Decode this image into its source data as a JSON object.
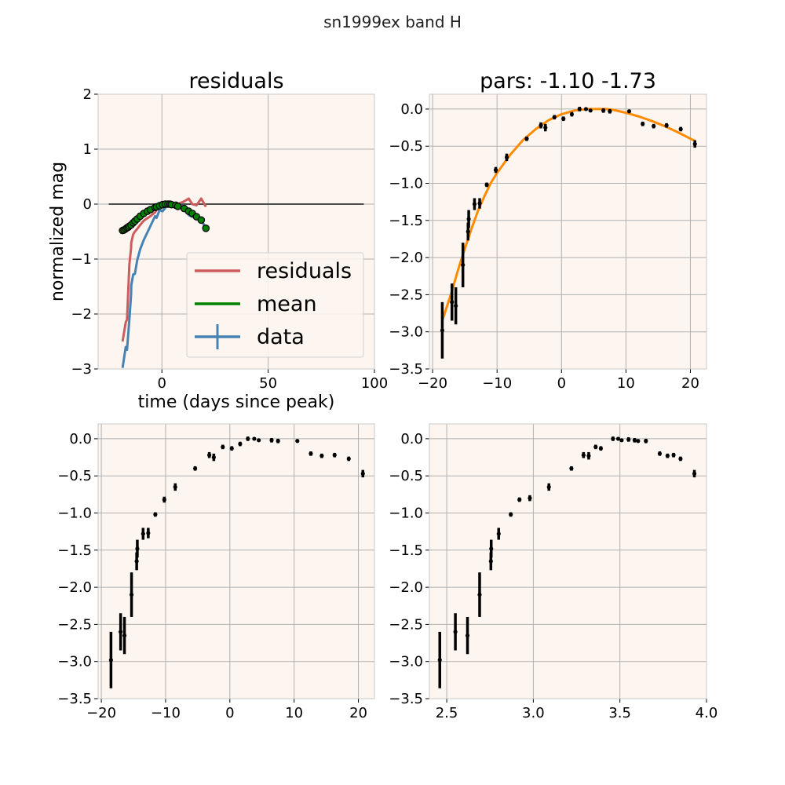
{
  "figure": {
    "title": "sn1999ex band H"
  },
  "legend": [
    {
      "label": "residuals",
      "color": "#cd5c5c"
    },
    {
      "label": "mean",
      "color": "#008000"
    },
    {
      "label": "data",
      "color": "#4682b4"
    }
  ],
  "colors": {
    "panel_bg": "#fdf6f0",
    "grid": "#b0b0b0",
    "fit": "#ff8c00",
    "zero_line": "#4d4d4d",
    "points": "#000000"
  },
  "chart_data": [
    {
      "id": "residuals",
      "type": "line",
      "title": "residuals",
      "xlabel": "time (days since peak)",
      "ylabel": "normalized mag",
      "xlim": [
        -30,
        100
      ],
      "ylim": [
        -3,
        2
      ],
      "xticks": [
        0,
        50,
        100
      ],
      "yticks": [
        -3,
        -2,
        -1,
        0,
        1,
        2
      ],
      "grid": true,
      "legend_position": "lower-right",
      "zero_line": {
        "x": [
          -25,
          95
        ],
        "y": 0
      },
      "series": [
        {
          "name": "residuals",
          "color": "#cd5c5c",
          "x": [
            -18.5,
            -17,
            -16.4,
            -15.3,
            -14.5,
            -14.4,
            -13.5,
            -12.7,
            -11.6,
            -10.2,
            -8.5,
            -5.4,
            -3.2,
            -2.5,
            -1.1,
            0.3,
            1.6,
            2.8,
            3.8,
            4.5,
            6.5,
            7.5,
            10.5,
            12.6,
            14.3,
            16.3,
            18.5,
            20.7
          ],
          "y": [
            -2.5,
            -2.15,
            -2.1,
            -1.1,
            -0.8,
            -0.7,
            -0.55,
            -0.5,
            -0.45,
            -0.38,
            -0.3,
            -0.22,
            -0.15,
            -0.1,
            -0.05,
            0.0,
            0.02,
            0.02,
            0.0,
            -0.02,
            0.02,
            0.0,
            0.05,
            0.1,
            0.0,
            -0.02,
            0.1,
            -0.05
          ]
        },
        {
          "name": "mean",
          "color": "#008000",
          "x": [
            -18.5,
            -17,
            -16.4,
            -15.3,
            -14.5,
            -14.4,
            -13.5,
            -12.7,
            -11.6,
            -10.2,
            -8.5,
            -5.4,
            -3.2,
            -2.5,
            -1.1,
            0.3,
            1.6,
            2.8,
            3.8,
            4.5,
            6.5,
            7.5,
            10.5,
            12.6,
            14.3,
            16.3,
            18.5,
            20.7
          ],
          "y": [
            -0.48,
            -0.45,
            -0.43,
            -0.4,
            -0.38,
            -0.37,
            -0.34,
            -0.31,
            -0.27,
            -0.22,
            -0.17,
            -0.1,
            -0.06,
            -0.05,
            -0.03,
            -0.01,
            0.0,
            0.0,
            0.0,
            -0.01,
            -0.02,
            -0.04,
            -0.08,
            -0.13,
            -0.17,
            -0.23,
            -0.29,
            -0.44
          ]
        },
        {
          "name": "data",
          "color": "#4682b4",
          "x": [
            -18.5,
            -17,
            -16.4,
            -15.3,
            -14.5,
            -14.4,
            -13.5,
            -12.7,
            -11.6,
            -10.2,
            -8.5,
            -5.4,
            -3.2,
            -2.5,
            -1.1,
            0.3,
            1.6,
            2.8,
            3.8,
            4.5,
            6.5,
            7.5,
            10.5,
            12.6,
            14.3,
            16.3,
            18.5,
            20.7
          ],
          "y": [
            -2.98,
            -2.6,
            -2.65,
            -2.1,
            -1.65,
            -1.48,
            -1.28,
            -1.27,
            -1.02,
            -0.82,
            -0.65,
            -0.4,
            -0.22,
            -0.25,
            -0.11,
            -0.13,
            -0.07,
            0.0,
            0.0,
            -0.02,
            -0.02,
            -0.03,
            -0.03,
            -0.2,
            -0.23,
            -0.22,
            -0.27,
            -0.47
          ]
        }
      ],
      "mean_points": {
        "x": [
          -18.5,
          -17.8,
          -17,
          -16.4,
          -15.8,
          -15.3,
          -14.5,
          -13.5,
          -12.7,
          -11.6,
          -10.2,
          -8.5,
          -6.8,
          -5.4,
          -3.2,
          -2.5,
          -1.1,
          0.3,
          1.6,
          2.8,
          3.8,
          4.5,
          6.5,
          7.5,
          10.5,
          12.6,
          14.3,
          16.3,
          18.5,
          20.7
        ],
        "y": [
          -0.48,
          -0.47,
          -0.45,
          -0.43,
          -0.42,
          -0.4,
          -0.38,
          -0.34,
          -0.31,
          -0.27,
          -0.22,
          -0.17,
          -0.13,
          -0.1,
          -0.06,
          -0.05,
          -0.03,
          -0.01,
          0.0,
          0.0,
          0.0,
          -0.01,
          -0.02,
          -0.04,
          -0.08,
          -0.13,
          -0.17,
          -0.23,
          -0.29,
          -0.44
        ]
      }
    },
    {
      "id": "pars",
      "type": "scatter",
      "title": "pars: -1.10 -1.73",
      "xlim": [
        -20.5,
        22.5
      ],
      "ylim": [
        -3.5,
        0.2
      ],
      "xticks": [
        -20,
        -10,
        0,
        10,
        20
      ],
      "yticks": [
        0.0,
        -0.5,
        -1.0,
        -1.5,
        -2.0,
        -2.5,
        -3.0,
        -3.5
      ],
      "grid": true,
      "x": [
        -18.5,
        -17,
        -16.4,
        -15.3,
        -14.5,
        -14.4,
        -13.5,
        -12.7,
        -11.6,
        -10.2,
        -8.5,
        -5.4,
        -3.2,
        -2.5,
        -1.1,
        0.3,
        1.6,
        2.8,
        3.8,
        4.5,
        6.5,
        7.5,
        10.5,
        12.6,
        14.3,
        16.3,
        18.5,
        20.7
      ],
      "y": [
        -2.98,
        -2.6,
        -2.65,
        -2.1,
        -1.65,
        -1.48,
        -1.28,
        -1.27,
        -1.02,
        -0.82,
        -0.65,
        -0.4,
        -0.22,
        -0.25,
        -0.11,
        -0.13,
        -0.07,
        0.0,
        0.0,
        -0.02,
        -0.02,
        -0.03,
        -0.03,
        -0.2,
        -0.23,
        -0.22,
        -0.27,
        -0.47
      ],
      "yerr": [
        0.38,
        0.25,
        0.25,
        0.3,
        0.12,
        0.12,
        0.08,
        0.07,
        0.03,
        0.04,
        0.05,
        0.03,
        0.04,
        0.05,
        0.03,
        0.03,
        0.03,
        0.03,
        0.02,
        0.02,
        0.03,
        0.03,
        0.02,
        0.03,
        0.03,
        0.03,
        0.03,
        0.05
      ],
      "fit_curve": {
        "x": [
          -18.5,
          -17,
          -16,
          -15,
          -14,
          -13,
          -12,
          -11,
          -10,
          -8,
          -6,
          -4,
          -2,
          0,
          2,
          4,
          6,
          7,
          8,
          10,
          12,
          14,
          16,
          18,
          20.7
        ],
        "y": [
          -2.85,
          -2.45,
          -2.15,
          -1.88,
          -1.62,
          -1.38,
          -1.18,
          -1.0,
          -0.86,
          -0.62,
          -0.42,
          -0.27,
          -0.15,
          -0.07,
          -0.02,
          0.0,
          0.0,
          0.0,
          -0.01,
          -0.05,
          -0.1,
          -0.16,
          -0.23,
          -0.31,
          -0.43
        ]
      }
    },
    {
      "id": "time-panel",
      "type": "scatter",
      "xlim": [
        -20.5,
        22.5
      ],
      "ylim": [
        -3.5,
        0.2
      ],
      "xticks": [
        -20,
        -10,
        0,
        10,
        20
      ],
      "yticks": [
        0.0,
        -0.5,
        -1.0,
        -1.5,
        -2.0,
        -2.5,
        -3.0,
        -3.5
      ],
      "grid": true,
      "x": [
        -18.5,
        -17,
        -16.4,
        -15.3,
        -14.5,
        -14.4,
        -13.5,
        -12.7,
        -11.6,
        -10.2,
        -8.5,
        -5.4,
        -3.2,
        -2.5,
        -1.1,
        0.3,
        1.6,
        2.8,
        3.8,
        4.5,
        6.5,
        7.5,
        10.5,
        12.6,
        14.3,
        16.3,
        18.5,
        20.7
      ],
      "y": [
        -2.98,
        -2.6,
        -2.65,
        -2.1,
        -1.65,
        -1.48,
        -1.28,
        -1.27,
        -1.02,
        -0.82,
        -0.65,
        -0.4,
        -0.22,
        -0.25,
        -0.11,
        -0.13,
        -0.07,
        0.0,
        0.0,
        -0.02,
        -0.02,
        -0.03,
        -0.03,
        -0.2,
        -0.23,
        -0.22,
        -0.27,
        -0.47
      ],
      "yerr": [
        0.38,
        0.25,
        0.25,
        0.3,
        0.12,
        0.12,
        0.08,
        0.07,
        0.03,
        0.04,
        0.05,
        0.03,
        0.04,
        0.05,
        0.03,
        0.03,
        0.03,
        0.03,
        0.02,
        0.02,
        0.03,
        0.03,
        0.02,
        0.03,
        0.03,
        0.03,
        0.03,
        0.05
      ]
    },
    {
      "id": "log-panel",
      "type": "scatter",
      "xlim": [
        2.4,
        4.0
      ],
      "ylim": [
        -3.5,
        0.2
      ],
      "xticks": [
        2.5,
        3.0,
        3.5,
        4.0
      ],
      "xtick_labels": [
        "2.5",
        "3.0",
        "3.5",
        "4.0"
      ],
      "yticks": [
        0.0,
        -0.5,
        -1.0,
        -1.5,
        -2.0,
        -2.5,
        -3.0,
        -3.5
      ],
      "grid": true,
      "x": [
        2.46,
        2.55,
        2.62,
        2.69,
        2.755,
        2.757,
        2.8,
        2.87,
        2.92,
        2.98,
        3.09,
        3.22,
        3.29,
        3.32,
        3.36,
        3.39,
        3.46,
        3.49,
        3.51,
        3.55,
        3.585,
        3.605,
        3.65,
        3.73,
        3.775,
        3.81,
        3.85,
        3.93
      ],
      "y": [
        -2.98,
        -2.6,
        -2.65,
        -2.1,
        -1.65,
        -1.48,
        -1.28,
        -1.02,
        -0.82,
        -0.8,
        -0.65,
        -0.4,
        -0.22,
        -0.23,
        -0.11,
        -0.13,
        0.0,
        0.0,
        -0.02,
        -0.01,
        -0.02,
        -0.03,
        -0.03,
        -0.2,
        -0.23,
        -0.22,
        -0.27,
        -0.47
      ],
      "yerr": [
        0.38,
        0.25,
        0.25,
        0.3,
        0.12,
        0.12,
        0.08,
        0.03,
        0.03,
        0.04,
        0.05,
        0.03,
        0.04,
        0.05,
        0.03,
        0.03,
        0.03,
        0.02,
        0.02,
        0.03,
        0.03,
        0.02,
        0.03,
        0.03,
        0.03,
        0.03,
        0.03,
        0.05
      ]
    }
  ]
}
